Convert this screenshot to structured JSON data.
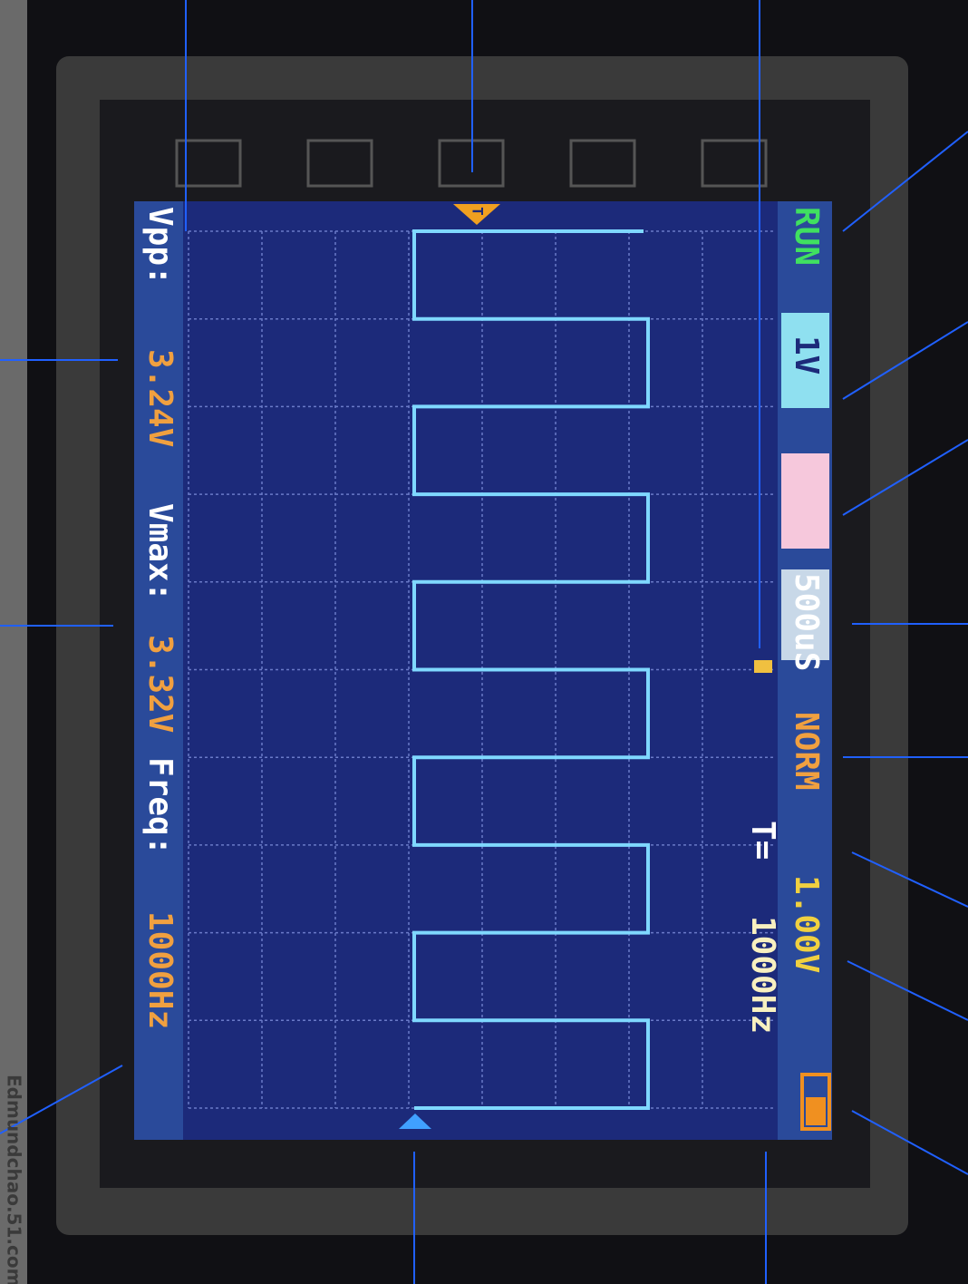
{
  "status_bar": {
    "run": "RUN",
    "volts_div": "1V",
    "time_div": "500uS",
    "trigger_mode": "NORM",
    "trigger_level": "1.00V",
    "trigger_freq_label": "T=",
    "trigger_freq": "1000Hz"
  },
  "measurements": {
    "vpp_label": "Vpp:",
    "vpp": "3.24V",
    "vmax_label": "Vmax:",
    "vmax": "3.32V",
    "freq_label": "Freq:",
    "freq": "1000Hz"
  },
  "trigger_marker": "T",
  "watermark": "Edmundchao.51.com"
}
